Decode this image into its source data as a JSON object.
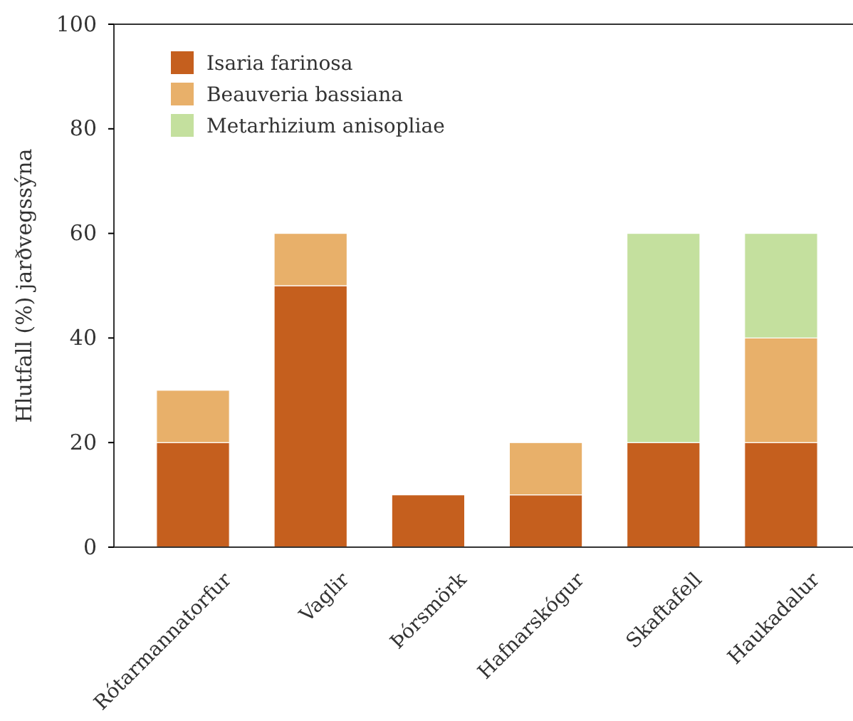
{
  "chart_data": {
    "type": "bar",
    "stacked": true,
    "ylabel": "Hlutfall (%) jarðvegssýna",
    "categories": [
      "Rótarmannatorfur",
      "Vaglir",
      "Þórsmörk",
      "Hafnarskógur",
      "Skaftafell",
      "Haukadalur"
    ],
    "series": [
      {
        "name": "Isaria farinosa",
        "color": "#c55f1e",
        "values": [
          20,
          50,
          10,
          10,
          20,
          20
        ]
      },
      {
        "name": "Beauveria bassiana",
        "color": "#e8b06a",
        "values": [
          10,
          10,
          0,
          10,
          0,
          20
        ]
      },
      {
        "name": "Metarhizium anisopliae",
        "color": "#c4e09e",
        "values": [
          0,
          0,
          0,
          0,
          40,
          20
        ]
      }
    ],
    "ylim": [
      0,
      100
    ],
    "yticks": [
      0,
      20,
      40,
      60,
      80,
      100
    ],
    "legend": "top left",
    "grid": false
  }
}
